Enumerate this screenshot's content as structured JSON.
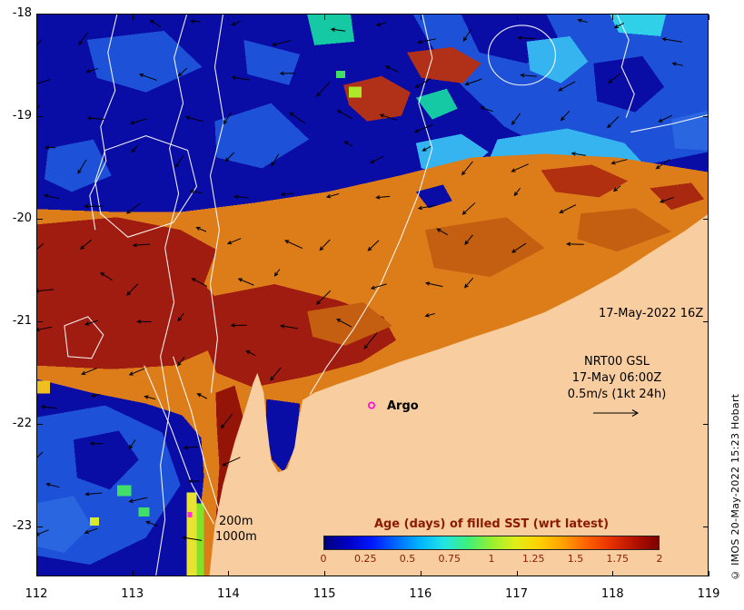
{
  "annotations": {
    "datetime": "17-May-2022 16Z",
    "model_name": "NRT00 GSL",
    "model_time": "17-May 06:00Z",
    "vector_scale": "0.5m/s (1kt 24h)",
    "argo_label": "Argo",
    "depth_label_200": "200m",
    "depth_label_1000": "1000m",
    "copyright": "© IMOS 20-May-2022 15:23 Hobart"
  },
  "axes": {
    "x_tick_labels": [
      "112",
      "113",
      "114",
      "115",
      "116",
      "117",
      "118",
      "119"
    ],
    "y_tick_labels": [
      "-18",
      "-19",
      "-20",
      "-21",
      "-22",
      "-23"
    ]
  },
  "colorbar": {
    "title": "Age (days) of filled SST (wrt latest)",
    "tick_labels": [
      "0",
      "0.25",
      "0.5",
      "0.75",
      "1",
      "1.25",
      "1.5",
      "1.75",
      "2"
    ],
    "colors": [
      "#00007f",
      "#0000c4",
      "#0018ff",
      "#0068ff",
      "#00b4ff",
      "#22e4e4",
      "#3cf07c",
      "#96f032",
      "#e0ee18",
      "#ffd000",
      "#ffa000",
      "#ff6000",
      "#e63000",
      "#b41200",
      "#7c0000"
    ],
    "label_color": "#8b1a00"
  },
  "map_palette": {
    "ocean_base": "#0a0ca6",
    "land": "#f8cd9f",
    "warm_band": "#dd7d1a",
    "dark_red": "#a01c10",
    "medium_blue": "#1d52d8",
    "cyan": "#35b4f0",
    "teal": "#15c9a4",
    "argo_marker": "#ff00e0"
  }
}
